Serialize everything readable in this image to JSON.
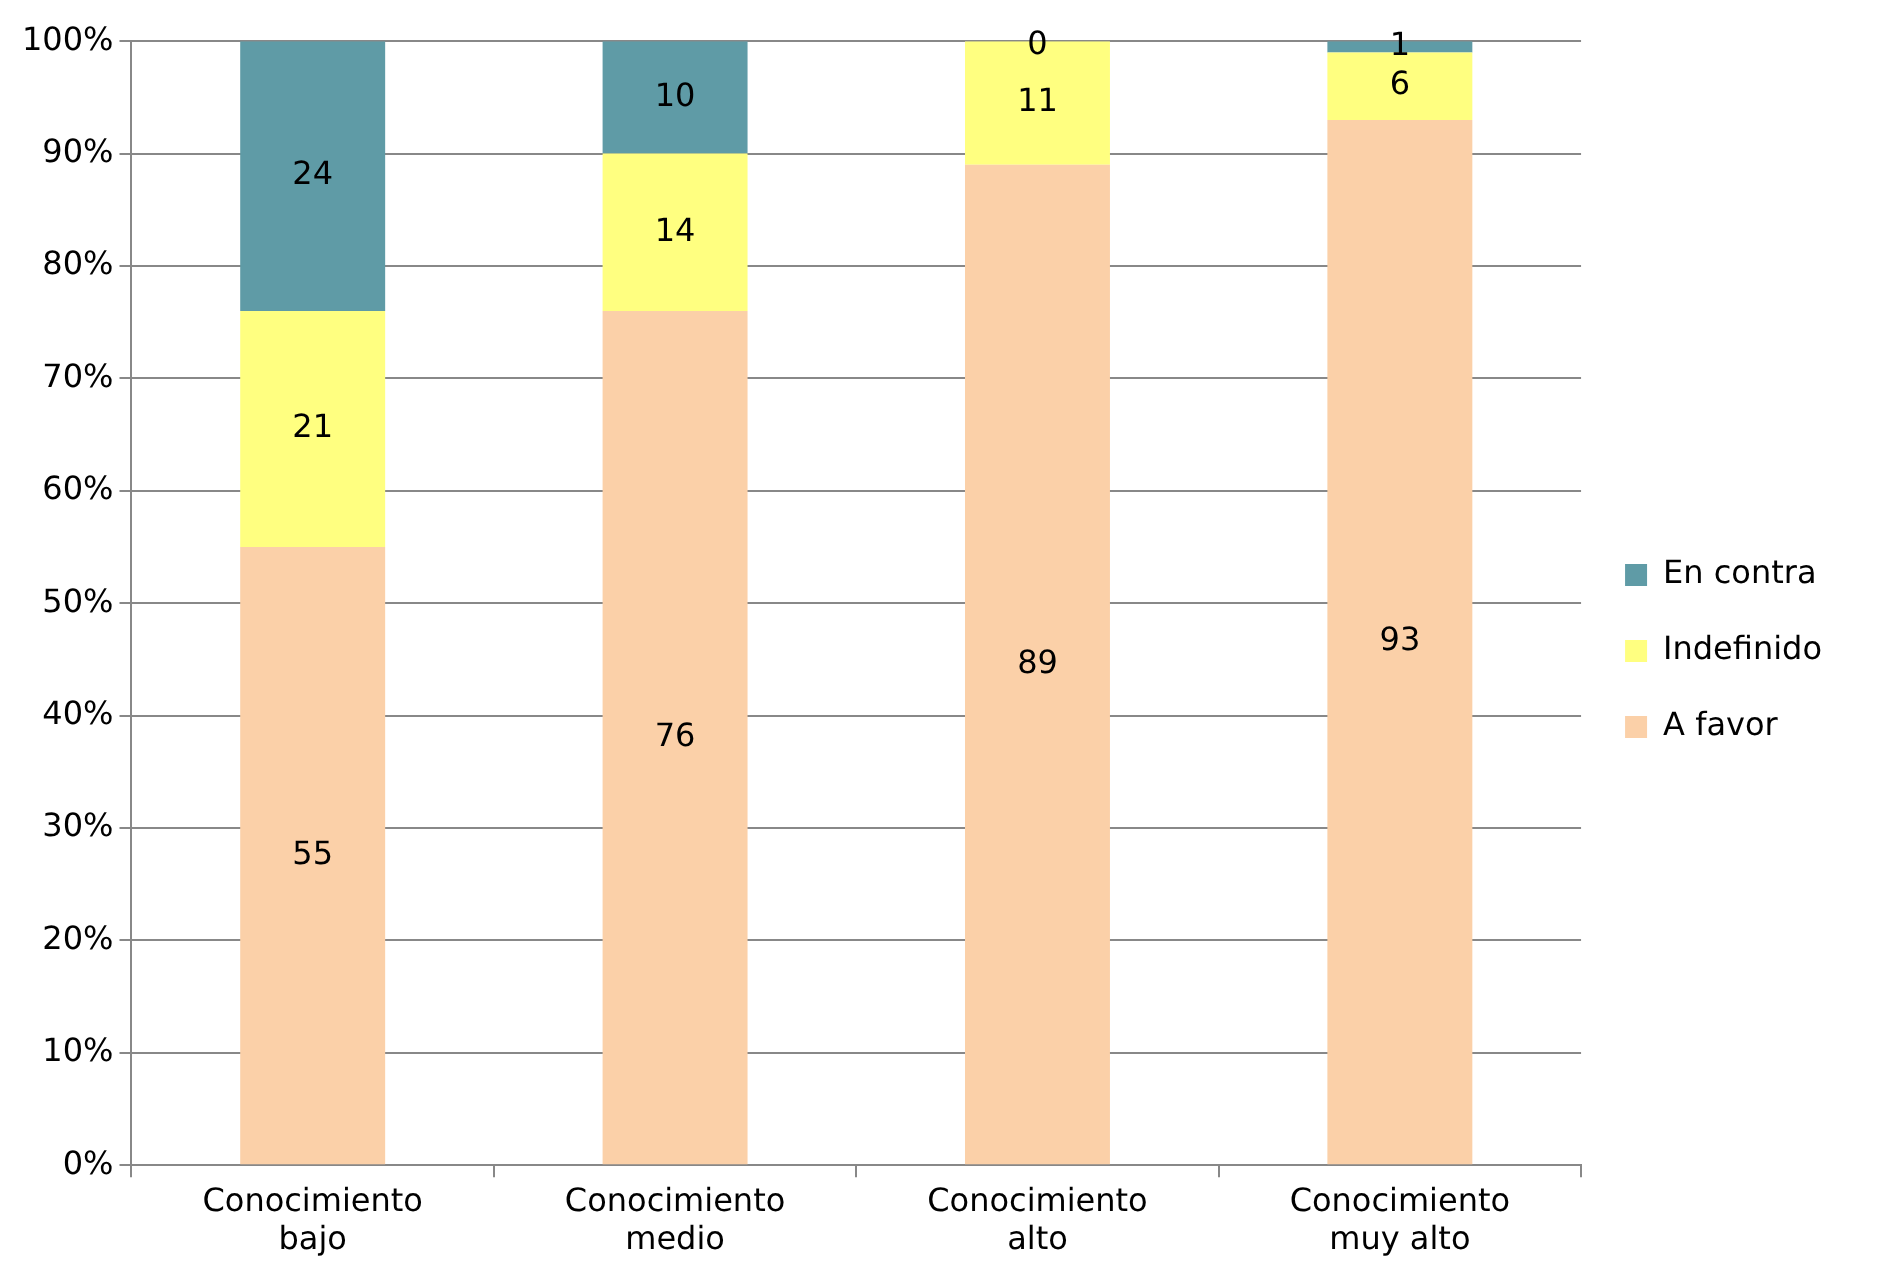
{
  "chart_data": {
    "type": "bar",
    "stacked": true,
    "categories": [
      "Conocimiento bajo",
      "Conocimiento medio",
      "Conocimiento alto",
      "Conocimiento muy alto"
    ],
    "series": [
      {
        "name": "A favor",
        "color": "#fbd0a8",
        "values": [
          55,
          76,
          89,
          93
        ]
      },
      {
        "name": "Indefinido",
        "color": "#ffff80",
        "values": [
          21,
          14,
          11,
          6
        ]
      },
      {
        "name": "En contra",
        "color": "#5f9ba6",
        "values": [
          24,
          10,
          0,
          1
        ]
      }
    ],
    "ylim": [
      0,
      100
    ],
    "yticks": [
      {
        "value": 0,
        "label": "0%"
      },
      {
        "value": 10,
        "label": "10%"
      },
      {
        "value": 20,
        "label": "20%"
      },
      {
        "value": 30,
        "label": "30%"
      },
      {
        "value": 40,
        "label": "40%"
      },
      {
        "value": 50,
        "label": "50%"
      },
      {
        "value": 60,
        "label": "60%"
      },
      {
        "value": 70,
        "label": "70%"
      },
      {
        "value": 80,
        "label": "80%"
      },
      {
        "value": 90,
        "label": "90%"
      },
      {
        "value": 100,
        "label": "100%"
      }
    ],
    "grid": "y",
    "legend": "right",
    "data_labels": true
  }
}
